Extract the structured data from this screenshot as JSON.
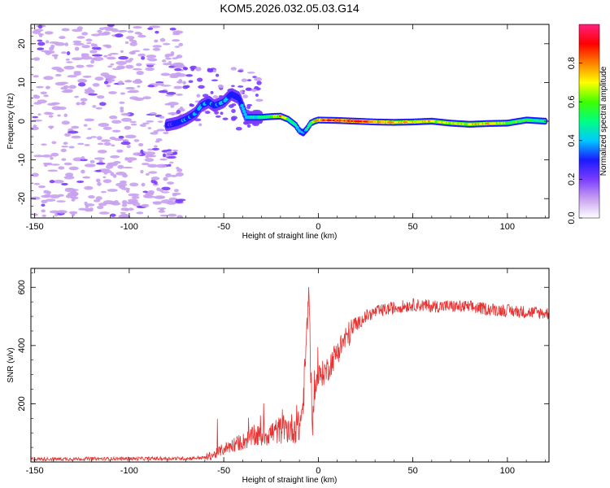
{
  "title": "KOM5.2026.032.05.03.G14",
  "chart_data": [
    {
      "type": "heatmap",
      "name": "spectrogram",
      "xlabel": "Height of straight line (km)",
      "ylabel": "Frequency (Hz)",
      "xlim": [
        -152,
        122
      ],
      "ylim": [
        -25,
        25
      ],
      "xticks": [
        "-150",
        "-100",
        "-50",
        "0",
        "50",
        "100"
      ],
      "yticks": [
        "-20",
        "-10",
        "0",
        "10",
        "20"
      ],
      "colorbar": {
        "label": "Normalized spectral amplitude",
        "range": [
          0,
          1
        ],
        "ticks": [
          "0.0",
          "0.2",
          "0.4",
          "0.6",
          "0.8"
        ],
        "colors": [
          "#ffffff",
          "#c8a0f0",
          "#7a3cff",
          "#1a1aff",
          "#00c8ff",
          "#00ff80",
          "#40ff00",
          "#ffff00",
          "#ff8000",
          "#ff0000",
          "#ff2080"
        ]
      },
      "ridge": {
        "x": [
          -80,
          -75,
          -70,
          -65,
          -62,
          -58,
          -55,
          -50,
          -46,
          -42,
          -38,
          -34,
          -30,
          -25,
          -20,
          -16,
          -12,
          -10,
          -8,
          -6,
          -4,
          -2,
          0,
          10,
          20,
          30,
          40,
          50,
          60,
          70,
          80,
          90,
          100,
          110,
          120
        ],
        "y": [
          -1,
          -0.5,
          0.5,
          2,
          4,
          5,
          4,
          5,
          7,
          6,
          1,
          1,
          1,
          1.2,
          1.3,
          0.5,
          -1,
          -2.5,
          -3,
          -2,
          -0.5,
          0,
          0.3,
          0.2,
          0,
          -0.2,
          -0.3,
          -0.2,
          0,
          -0.5,
          -0.8,
          -0.6,
          -0.5,
          0.3,
          0
        ],
        "amp": [
          0.3,
          0.35,
          0.4,
          0.42,
          0.45,
          0.4,
          0.38,
          0.42,
          0.4,
          0.35,
          0.45,
          0.5,
          0.55,
          0.65,
          0.8,
          0.55,
          0.45,
          0.4,
          0.35,
          0.4,
          0.55,
          0.7,
          0.8,
          0.9,
          0.85,
          0.8,
          0.75,
          0.72,
          0.7,
          0.65,
          0.7,
          0.72,
          0.6,
          0.55,
          0.5
        ]
      }
    },
    {
      "type": "line",
      "name": "snr",
      "xlabel": "Height of straight line (km)",
      "ylabel": "SNR (v/v)",
      "xlim": [
        -152,
        122
      ],
      "ylim": [
        0,
        665
      ],
      "xticks": [
        "-150",
        "-100",
        "-50",
        "0",
        "50",
        "100"
      ],
      "yticks": [
        "200",
        "400",
        "600"
      ],
      "color": "#e83232",
      "profile_x": [
        -152,
        -70,
        -60,
        -55,
        -50,
        -45,
        -40,
        -35,
        -30,
        -25,
        -20,
        -15,
        -10,
        -8,
        -6,
        -5,
        -4,
        -3,
        -2,
        0,
        5,
        10,
        15,
        20,
        25,
        30,
        40,
        50,
        60,
        70,
        80,
        90,
        100,
        110,
        122
      ],
      "profile_y": [
        10,
        12,
        15,
        25,
        45,
        60,
        70,
        85,
        90,
        100,
        110,
        115,
        120,
        200,
        450,
        620,
        300,
        130,
        250,
        290,
        320,
        380,
        430,
        470,
        500,
        515,
        530,
        540,
        535,
        535,
        532,
        525,
        520,
        515,
        510
      ],
      "noise": 18
    }
  ]
}
